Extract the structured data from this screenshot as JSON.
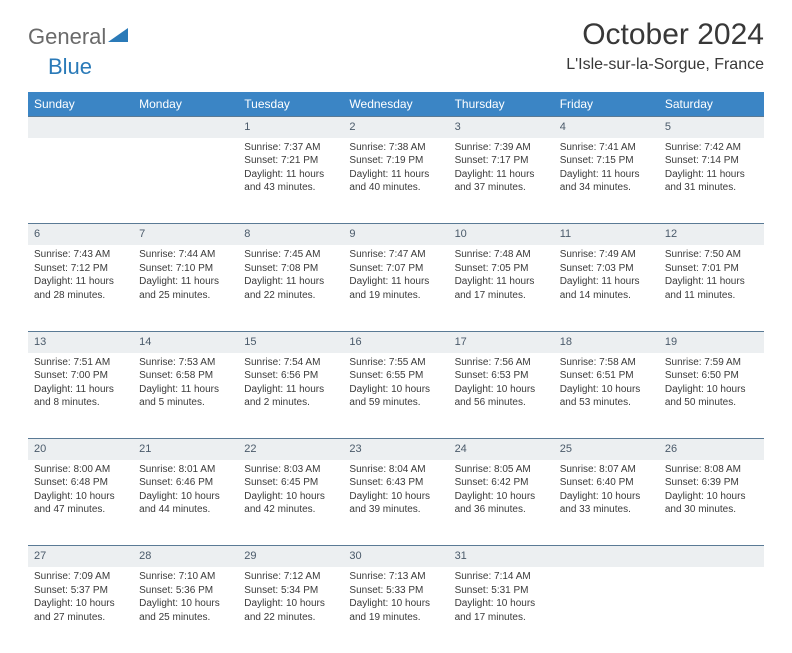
{
  "logo": {
    "text_left": "General",
    "text_right": "Blue"
  },
  "title": "October 2024",
  "location": "L'Isle-sur-la-Sorgue, France",
  "colors": {
    "header_bg": "#3b85c5",
    "header_text": "#ffffff",
    "daynum_bg": "#eceff1",
    "daynum_border": "#5a7a95",
    "logo_gray": "#6a6a6a",
    "logo_blue": "#2a7ab8"
  },
  "day_headers": [
    "Sunday",
    "Monday",
    "Tuesday",
    "Wednesday",
    "Thursday",
    "Friday",
    "Saturday"
  ],
  "weeks": [
    [
      {
        "n": "",
        "sunrise": "",
        "sunset": "",
        "daylight": ""
      },
      {
        "n": "",
        "sunrise": "",
        "sunset": "",
        "daylight": ""
      },
      {
        "n": "1",
        "sunrise": "Sunrise: 7:37 AM",
        "sunset": "Sunset: 7:21 PM",
        "daylight": "Daylight: 11 hours and 43 minutes."
      },
      {
        "n": "2",
        "sunrise": "Sunrise: 7:38 AM",
        "sunset": "Sunset: 7:19 PM",
        "daylight": "Daylight: 11 hours and 40 minutes."
      },
      {
        "n": "3",
        "sunrise": "Sunrise: 7:39 AM",
        "sunset": "Sunset: 7:17 PM",
        "daylight": "Daylight: 11 hours and 37 minutes."
      },
      {
        "n": "4",
        "sunrise": "Sunrise: 7:41 AM",
        "sunset": "Sunset: 7:15 PM",
        "daylight": "Daylight: 11 hours and 34 minutes."
      },
      {
        "n": "5",
        "sunrise": "Sunrise: 7:42 AM",
        "sunset": "Sunset: 7:14 PM",
        "daylight": "Daylight: 11 hours and 31 minutes."
      }
    ],
    [
      {
        "n": "6",
        "sunrise": "Sunrise: 7:43 AM",
        "sunset": "Sunset: 7:12 PM",
        "daylight": "Daylight: 11 hours and 28 minutes."
      },
      {
        "n": "7",
        "sunrise": "Sunrise: 7:44 AM",
        "sunset": "Sunset: 7:10 PM",
        "daylight": "Daylight: 11 hours and 25 minutes."
      },
      {
        "n": "8",
        "sunrise": "Sunrise: 7:45 AM",
        "sunset": "Sunset: 7:08 PM",
        "daylight": "Daylight: 11 hours and 22 minutes."
      },
      {
        "n": "9",
        "sunrise": "Sunrise: 7:47 AM",
        "sunset": "Sunset: 7:07 PM",
        "daylight": "Daylight: 11 hours and 19 minutes."
      },
      {
        "n": "10",
        "sunrise": "Sunrise: 7:48 AM",
        "sunset": "Sunset: 7:05 PM",
        "daylight": "Daylight: 11 hours and 17 minutes."
      },
      {
        "n": "11",
        "sunrise": "Sunrise: 7:49 AM",
        "sunset": "Sunset: 7:03 PM",
        "daylight": "Daylight: 11 hours and 14 minutes."
      },
      {
        "n": "12",
        "sunrise": "Sunrise: 7:50 AM",
        "sunset": "Sunset: 7:01 PM",
        "daylight": "Daylight: 11 hours and 11 minutes."
      }
    ],
    [
      {
        "n": "13",
        "sunrise": "Sunrise: 7:51 AM",
        "sunset": "Sunset: 7:00 PM",
        "daylight": "Daylight: 11 hours and 8 minutes."
      },
      {
        "n": "14",
        "sunrise": "Sunrise: 7:53 AM",
        "sunset": "Sunset: 6:58 PM",
        "daylight": "Daylight: 11 hours and 5 minutes."
      },
      {
        "n": "15",
        "sunrise": "Sunrise: 7:54 AM",
        "sunset": "Sunset: 6:56 PM",
        "daylight": "Daylight: 11 hours and 2 minutes."
      },
      {
        "n": "16",
        "sunrise": "Sunrise: 7:55 AM",
        "sunset": "Sunset: 6:55 PM",
        "daylight": "Daylight: 10 hours and 59 minutes."
      },
      {
        "n": "17",
        "sunrise": "Sunrise: 7:56 AM",
        "sunset": "Sunset: 6:53 PM",
        "daylight": "Daylight: 10 hours and 56 minutes."
      },
      {
        "n": "18",
        "sunrise": "Sunrise: 7:58 AM",
        "sunset": "Sunset: 6:51 PM",
        "daylight": "Daylight: 10 hours and 53 minutes."
      },
      {
        "n": "19",
        "sunrise": "Sunrise: 7:59 AM",
        "sunset": "Sunset: 6:50 PM",
        "daylight": "Daylight: 10 hours and 50 minutes."
      }
    ],
    [
      {
        "n": "20",
        "sunrise": "Sunrise: 8:00 AM",
        "sunset": "Sunset: 6:48 PM",
        "daylight": "Daylight: 10 hours and 47 minutes."
      },
      {
        "n": "21",
        "sunrise": "Sunrise: 8:01 AM",
        "sunset": "Sunset: 6:46 PM",
        "daylight": "Daylight: 10 hours and 44 minutes."
      },
      {
        "n": "22",
        "sunrise": "Sunrise: 8:03 AM",
        "sunset": "Sunset: 6:45 PM",
        "daylight": "Daylight: 10 hours and 42 minutes."
      },
      {
        "n": "23",
        "sunrise": "Sunrise: 8:04 AM",
        "sunset": "Sunset: 6:43 PM",
        "daylight": "Daylight: 10 hours and 39 minutes."
      },
      {
        "n": "24",
        "sunrise": "Sunrise: 8:05 AM",
        "sunset": "Sunset: 6:42 PM",
        "daylight": "Daylight: 10 hours and 36 minutes."
      },
      {
        "n": "25",
        "sunrise": "Sunrise: 8:07 AM",
        "sunset": "Sunset: 6:40 PM",
        "daylight": "Daylight: 10 hours and 33 minutes."
      },
      {
        "n": "26",
        "sunrise": "Sunrise: 8:08 AM",
        "sunset": "Sunset: 6:39 PM",
        "daylight": "Daylight: 10 hours and 30 minutes."
      }
    ],
    [
      {
        "n": "27",
        "sunrise": "Sunrise: 7:09 AM",
        "sunset": "Sunset: 5:37 PM",
        "daylight": "Daylight: 10 hours and 27 minutes."
      },
      {
        "n": "28",
        "sunrise": "Sunrise: 7:10 AM",
        "sunset": "Sunset: 5:36 PM",
        "daylight": "Daylight: 10 hours and 25 minutes."
      },
      {
        "n": "29",
        "sunrise": "Sunrise: 7:12 AM",
        "sunset": "Sunset: 5:34 PM",
        "daylight": "Daylight: 10 hours and 22 minutes."
      },
      {
        "n": "30",
        "sunrise": "Sunrise: 7:13 AM",
        "sunset": "Sunset: 5:33 PM",
        "daylight": "Daylight: 10 hours and 19 minutes."
      },
      {
        "n": "31",
        "sunrise": "Sunrise: 7:14 AM",
        "sunset": "Sunset: 5:31 PM",
        "daylight": "Daylight: 10 hours and 17 minutes."
      },
      {
        "n": "",
        "sunrise": "",
        "sunset": "",
        "daylight": ""
      },
      {
        "n": "",
        "sunrise": "",
        "sunset": "",
        "daylight": ""
      }
    ]
  ]
}
